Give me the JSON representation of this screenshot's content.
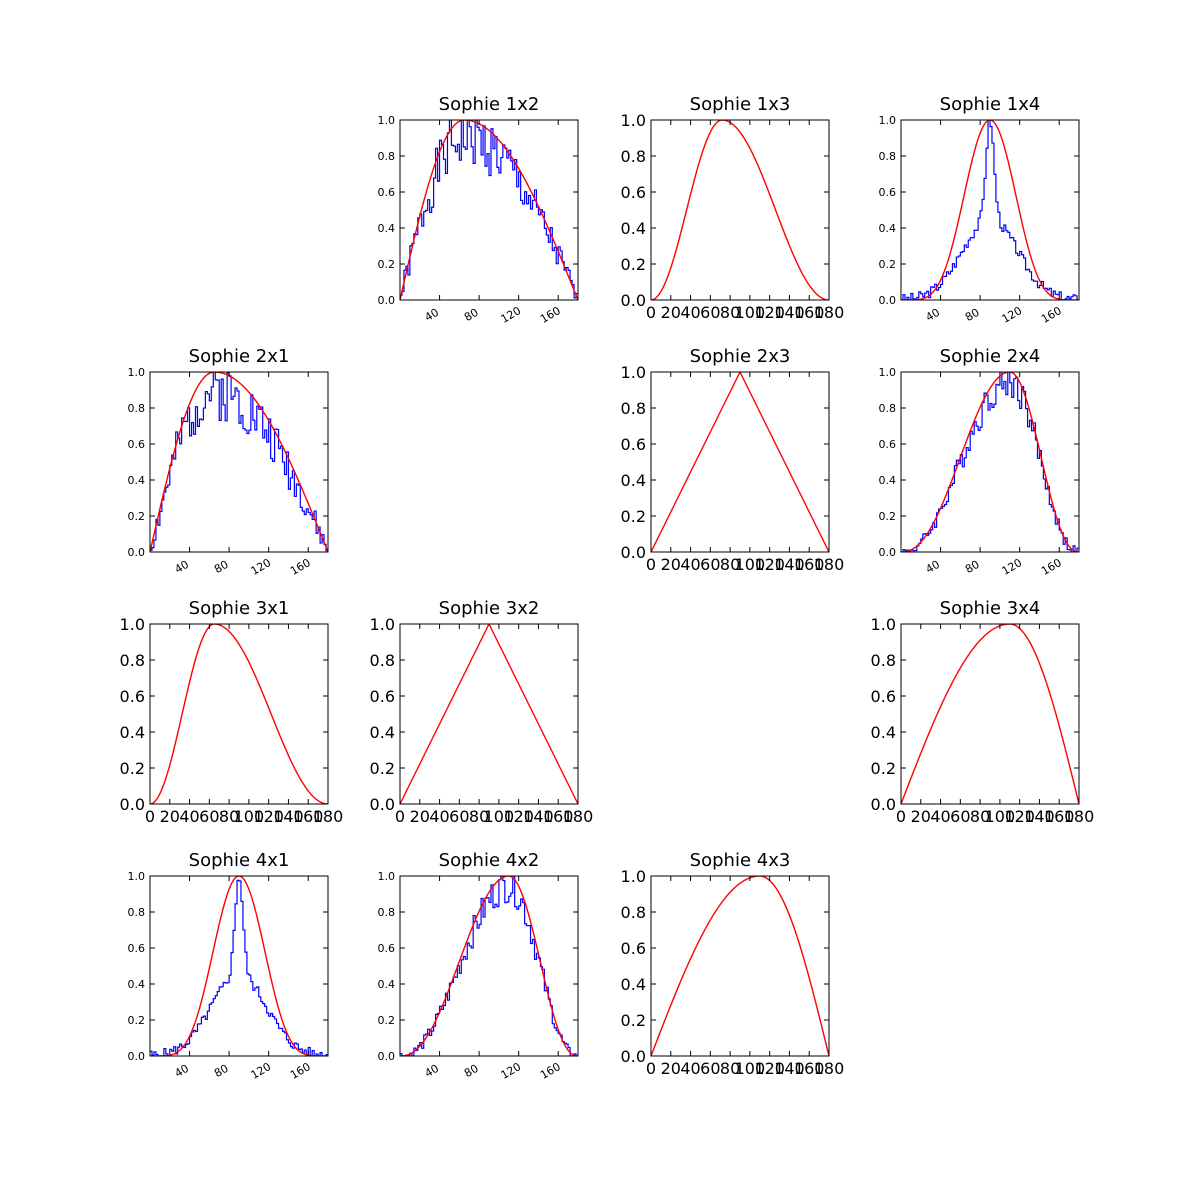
{
  "colors": {
    "fit": "#ff0000",
    "hist": "#0000ff",
    "axes": "#000000"
  },
  "chart_data": [
    {
      "type": "line",
      "title": "Sophie 1x2",
      "grid_row": 1,
      "grid_col": 2,
      "tick_style": "small",
      "xlim": [
        0,
        180
      ],
      "ylim": [
        0,
        1
      ],
      "xticks": [
        40,
        80,
        120,
        160
      ],
      "yticks": [
        0.0,
        0.2,
        0.4,
        0.6,
        0.8,
        1.0
      ],
      "fit": {
        "kind": "sine",
        "peak": 65,
        "sharp": 1
      },
      "hist": {
        "kind": "noisy",
        "scale": 0.9,
        "amp": 0.12,
        "seed": 1
      }
    },
    {
      "type": "line",
      "title": "Sophie 1x3",
      "grid_row": 1,
      "grid_col": 3,
      "tick_style": "large",
      "xlim": [
        0,
        180
      ],
      "ylim": [
        0,
        1
      ],
      "xticks": [
        0,
        20,
        40,
        60,
        80,
        100,
        120,
        140,
        160,
        180
      ],
      "yticks": [
        0.0,
        0.2,
        0.4,
        0.6,
        0.8,
        1.0
      ],
      "fit": {
        "kind": "sine",
        "peak": 72,
        "sharp": 2
      }
    },
    {
      "type": "line",
      "title": "Sophie 1x4",
      "grid_row": 1,
      "grid_col": 4,
      "tick_style": "small",
      "xlim": [
        0,
        180
      ],
      "ylim": [
        0,
        1
      ],
      "xticks": [
        40,
        80,
        120,
        160
      ],
      "yticks": [
        0.0,
        0.2,
        0.4,
        0.6,
        0.8,
        1.0
      ],
      "fit": {
        "kind": "sine",
        "peak": 90,
        "sharp": 5
      },
      "hist": {
        "kind": "peak",
        "center": 90,
        "wide": 28,
        "narrow": 4,
        "base": 0.45,
        "amp": 0.03,
        "seed": 3
      }
    },
    {
      "type": "line",
      "title": "Sophie 2x1",
      "grid_row": 2,
      "grid_col": 1,
      "tick_style": "small",
      "xlim": [
        0,
        180
      ],
      "ylim": [
        0,
        1
      ],
      "xticks": [
        40,
        80,
        120,
        160
      ],
      "yticks": [
        0.0,
        0.2,
        0.4,
        0.6,
        0.8,
        1.0
      ],
      "fit": {
        "kind": "sine",
        "peak": 65,
        "sharp": 1
      },
      "hist": {
        "kind": "noisy",
        "scale": 0.9,
        "amp": 0.12,
        "seed": 2
      }
    },
    {
      "type": "line",
      "title": "Sophie 2x3",
      "grid_row": 2,
      "grid_col": 3,
      "tick_style": "large",
      "xlim": [
        0,
        180
      ],
      "ylim": [
        0,
        1
      ],
      "xticks": [
        0,
        20,
        40,
        60,
        80,
        100,
        120,
        140,
        160,
        180
      ],
      "yticks": [
        0.0,
        0.2,
        0.4,
        0.6,
        0.8,
        1.0
      ],
      "fit": {
        "kind": "tri",
        "peak": 90
      }
    },
    {
      "type": "line",
      "title": "Sophie 2x4",
      "grid_row": 2,
      "grid_col": 4,
      "tick_style": "small",
      "xlim": [
        0,
        180
      ],
      "ylim": [
        0,
        1
      ],
      "xticks": [
        40,
        80,
        120,
        160
      ],
      "yticks": [
        0.0,
        0.2,
        0.4,
        0.6,
        0.8,
        1.0
      ],
      "fit": {
        "kind": "sine",
        "peak": 110,
        "sharp": 2.3
      },
      "hist": {
        "kind": "noisy",
        "scale": 0.95,
        "amp": 0.07,
        "seed": 4
      }
    },
    {
      "type": "line",
      "title": "Sophie 3x1",
      "grid_row": 3,
      "grid_col": 1,
      "tick_style": "large",
      "xlim": [
        0,
        180
      ],
      "ylim": [
        0,
        1
      ],
      "xticks": [
        0,
        20,
        40,
        60,
        80,
        100,
        120,
        140,
        160,
        180
      ],
      "yticks": [
        0.0,
        0.2,
        0.4,
        0.6,
        0.8,
        1.0
      ],
      "fit": {
        "kind": "sine",
        "peak": 65,
        "sharp": 2
      }
    },
    {
      "type": "line",
      "title": "Sophie 3x2",
      "grid_row": 3,
      "grid_col": 2,
      "tick_style": "large",
      "xlim": [
        0,
        180
      ],
      "ylim": [
        0,
        1
      ],
      "xticks": [
        0,
        20,
        40,
        60,
        80,
        100,
        120,
        140,
        160,
        180
      ],
      "yticks": [
        0.0,
        0.2,
        0.4,
        0.6,
        0.8,
        1.0
      ],
      "fit": {
        "kind": "tri",
        "peak": 90
      }
    },
    {
      "type": "line",
      "title": "Sophie 3x4",
      "grid_row": 3,
      "grid_col": 4,
      "tick_style": "large",
      "xlim": [
        0,
        180
      ],
      "ylim": [
        0,
        1
      ],
      "xticks": [
        0,
        20,
        40,
        60,
        80,
        100,
        120,
        140,
        160,
        180
      ],
      "yticks": [
        0.0,
        0.2,
        0.4,
        0.6,
        0.8,
        1.0
      ],
      "fit": {
        "kind": "sine",
        "peak": 110,
        "sharp": 1
      }
    },
    {
      "type": "line",
      "title": "Sophie 4x1",
      "grid_row": 4,
      "grid_col": 1,
      "tick_style": "small",
      "xlim": [
        0,
        180
      ],
      "ylim": [
        0,
        1
      ],
      "xticks": [
        40,
        80,
        120,
        160
      ],
      "yticks": [
        0.0,
        0.2,
        0.4,
        0.6,
        0.8,
        1.0
      ],
      "fit": {
        "kind": "sine",
        "peak": 90,
        "sharp": 5
      },
      "hist": {
        "kind": "peak",
        "center": 90,
        "wide": 28,
        "narrow": 4,
        "base": 0.45,
        "amp": 0.03,
        "seed": 5
      }
    },
    {
      "type": "line",
      "title": "Sophie 4x2",
      "grid_row": 4,
      "grid_col": 2,
      "tick_style": "small",
      "xlim": [
        0,
        180
      ],
      "ylim": [
        0,
        1
      ],
      "xticks": [
        40,
        80,
        120,
        160
      ],
      "yticks": [
        0.0,
        0.2,
        0.4,
        0.6,
        0.8,
        1.0
      ],
      "fit": {
        "kind": "sine",
        "peak": 110,
        "sharp": 2.3
      },
      "hist": {
        "kind": "noisy",
        "scale": 0.95,
        "amp": 0.07,
        "seed": 6
      }
    },
    {
      "type": "line",
      "title": "Sophie 4x3",
      "grid_row": 4,
      "grid_col": 3,
      "tick_style": "large",
      "xlim": [
        0,
        180
      ],
      "ylim": [
        0,
        1
      ],
      "xticks": [
        0,
        20,
        40,
        60,
        80,
        100,
        120,
        140,
        160,
        180
      ],
      "yticks": [
        0.0,
        0.2,
        0.4,
        0.6,
        0.8,
        1.0
      ],
      "fit": {
        "kind": "sine",
        "peak": 110,
        "sharp": 1
      }
    }
  ]
}
